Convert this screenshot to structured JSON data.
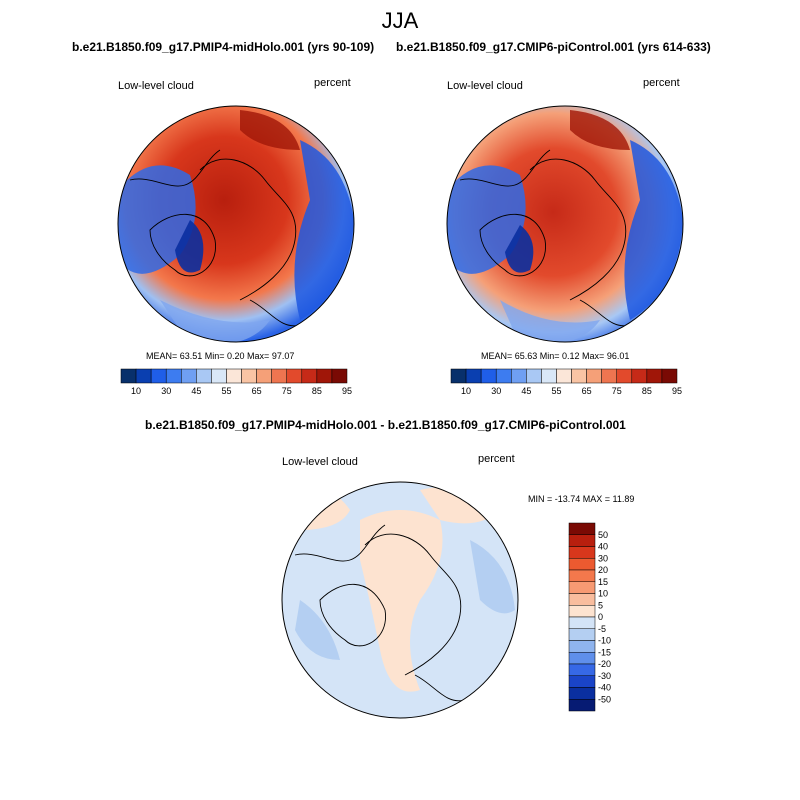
{
  "season_title": "JJA",
  "panels": [
    {
      "title": "b.e21.B1850.f09_g17.PMIP4-midHolo.001 (yrs 90-109)",
      "variable": "Low-level cloud",
      "units": "percent",
      "stats_text": "MEAN=  63.51  Min=   0.20  Max=  97.07"
    },
    {
      "title": "b.e21.B1850.f09_g17.CMIP6-piControl.001 (yrs 614-633)",
      "variable": "Low-level cloud",
      "units": "percent",
      "stats_text": "MEAN=  65.63  Min=   0.12  Max=  96.01"
    },
    {
      "title": "b.e21.B1850.f09_g17.PMIP4-midHolo.001 - b.e21.B1850.f09_g17.CMIP6-piControl.001",
      "variable": "Low-level cloud",
      "units": "percent",
      "stats_text": "MIN = -13.74 MAX =  11.89"
    }
  ],
  "abs_colorbar": {
    "labels": [
      "10",
      "30",
      "45",
      "55",
      "65",
      "75",
      "85",
      "95"
    ],
    "colors": [
      "#08306b",
      "#0a3fb0",
      "#1f5ee8",
      "#3d7cf0",
      "#6f9ff2",
      "#a9c8f4",
      "#d9e7f7",
      "#fbe6d8",
      "#f9c4a4",
      "#f5a078",
      "#ee7550",
      "#e24a2c",
      "#c62a18",
      "#a01608",
      "#7a0a04"
    ]
  },
  "diff_colorbar": {
    "labels": [
      "50",
      "40",
      "30",
      "20",
      "15",
      "10",
      "5",
      "0",
      "-5",
      "-10",
      "-15",
      "-20",
      "-30",
      "-40",
      "-50"
    ],
    "colors": [
      "#7a0a04",
      "#b81f0e",
      "#d8371c",
      "#ec5a30",
      "#f3784c",
      "#f79a73",
      "#f9bd9e",
      "#fde3d0",
      "#d4e4f7",
      "#b4cff2",
      "#8fb4ee",
      "#5f8feb",
      "#3668e6",
      "#1a44c8",
      "#0a2fa0",
      "#061b73"
    ]
  },
  "chart_data": {
    "type": "heatmap",
    "projection": "north polar stereographic",
    "season": "JJA",
    "variable": "Low-level cloud",
    "units": "percent",
    "maps": [
      {
        "case": "b.e21.B1850.f09_g17.PMIP4-midHolo.001",
        "years": "90-109",
        "mean": 63.51,
        "min": 0.2,
        "max": 97.07
      },
      {
        "case": "b.e21.B1850.f09_g17.CMIP6-piControl.001",
        "years": "614-633",
        "mean": 65.63,
        "min": 0.12,
        "max": 96.01
      },
      {
        "case": "difference",
        "min": -13.74,
        "max": 11.89
      }
    ],
    "abs_levels": [
      10,
      15,
      20,
      30,
      40,
      45,
      50,
      55,
      60,
      65,
      70,
      75,
      80,
      85,
      90,
      95
    ],
    "diff_levels": [
      -50,
      -40,
      -30,
      -20,
      -15,
      -10,
      -5,
      0,
      5,
      10,
      15,
      20,
      30,
      40,
      50
    ]
  }
}
